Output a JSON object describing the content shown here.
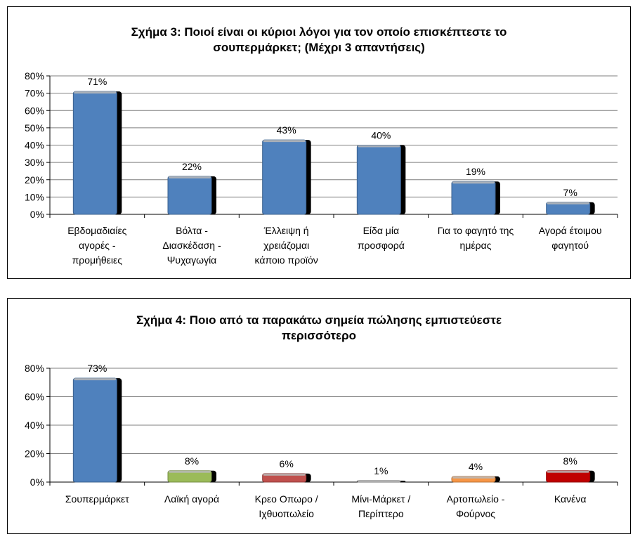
{
  "chart_data": [
    {
      "type": "bar",
      "title_lines": [
        "Σχήμα 3: Ποιοί είναι οι κύριοι λόγοι για τον οποίο επισκέπτεστε το",
        "σουπερμάρκετ; (Μέχρι 3 απαντήσεις)"
      ],
      "categories": [
        [
          "Εβδομαδιαίες",
          "αγορές -",
          "προμήθειες"
        ],
        [
          "Βόλτα -",
          "Διασκέδαση -",
          "Ψυχαγωγία"
        ],
        [
          "Έλλειψη ή",
          "χρειάζομαι",
          "κάποιο προϊόν"
        ],
        [
          "Είδα μία",
          "προσφορά"
        ],
        [
          "Για το φαγητό της",
          "ημέρας"
        ],
        [
          "Αγορά έτοιμου",
          "φαγητού"
        ]
      ],
      "values": [
        71,
        22,
        43,
        40,
        19,
        7
      ],
      "data_labels": [
        "71%",
        "22%",
        "43%",
        "40%",
        "19%",
        "7%"
      ],
      "bar_colors": [
        "#4f81bd",
        "#4f81bd",
        "#4f81bd",
        "#4f81bd",
        "#4f81bd",
        "#4f81bd"
      ],
      "yticks": [
        "0%",
        "10%",
        "20%",
        "30%",
        "40%",
        "50%",
        "60%",
        "70%",
        "80%"
      ],
      "ylim": [
        0,
        80
      ],
      "ystep": 10,
      "grid": true
    },
    {
      "type": "bar",
      "title_lines": [
        "Σχήμα 4: Ποιο από τα παρακάτω σημεία πώλησης εμπιστεύεστε",
        "περισσότερο"
      ],
      "categories": [
        [
          "Σουπερμάρκετ"
        ],
        [
          "Λαϊκή αγορά"
        ],
        [
          "Κρεο Οπωρο /",
          "Ιχθυοπωλείο"
        ],
        [
          "Μίνι-Μάρκετ /",
          "Περίπτερο"
        ],
        [
          "Αρτοπωλείο -",
          "Φούρνος"
        ],
        [
          "Κανένα"
        ]
      ],
      "values": [
        73,
        8,
        6,
        1,
        4,
        8
      ],
      "data_labels": [
        "73%",
        "8%",
        "6%",
        "1%",
        "4%",
        "8%"
      ],
      "bar_colors": [
        "#4f81bd",
        "#9bbb59",
        "#c0504d",
        "#7f7f7f",
        "#f79646",
        "#c00000"
      ],
      "yticks": [
        "0%",
        "20%",
        "40%",
        "60%",
        "80%"
      ],
      "ylim": [
        0,
        80
      ],
      "ystep": 20,
      "grid": true
    }
  ]
}
